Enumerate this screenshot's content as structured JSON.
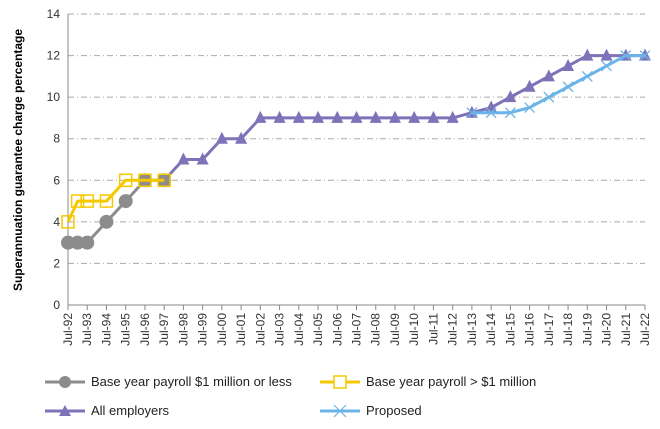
{
  "chart_data": {
    "type": "line",
    "title": "",
    "xlabel": "",
    "ylabel": "Superannuation guarantee charge percentage",
    "ylim": [
      0,
      14
    ],
    "yticks": [
      0,
      2,
      4,
      6,
      8,
      10,
      12,
      14
    ],
    "grid": "horizontal dash-dot",
    "legend": "bottom",
    "xticks": [
      "Jul-92",
      "Jul-93",
      "Jul-94",
      "Jul-95",
      "Jul-96",
      "Jul-97",
      "Jul-98",
      "Jul-99",
      "Jul-00",
      "Jul-01",
      "Jul-02",
      "Jul-03",
      "Jul-04",
      "Jul-05",
      "Jul-06",
      "Jul-07",
      "Jul-08",
      "Jul-09",
      "Jul-10",
      "Jul-11",
      "Jul-12",
      "Jul-13",
      "Jul-14",
      "Jul-15",
      "Jul-16",
      "Jul-17",
      "Jul-18",
      "Jul-19",
      "Jul-20",
      "Jul-21",
      "Jul-22"
    ],
    "series": [
      {
        "name": "Base year payroll  $1 million or less",
        "color": "#8c8c8c",
        "marker": "circle",
        "x": [
          "Jul-92",
          "Jan-93",
          "Jul-93",
          "Jul-94",
          "Jul-95",
          "Jul-96",
          "Jul-97"
        ],
        "values": [
          3,
          3,
          3,
          4,
          5,
          6,
          6
        ]
      },
      {
        "name": "Base year payroll > $1 million",
        "color": "#f5c800",
        "marker": "square",
        "x": [
          "Jul-92",
          "Jan-93",
          "Jul-93",
          "Jul-94",
          "Jul-95",
          "Jul-96",
          "Jul-97"
        ],
        "values": [
          4,
          5,
          5,
          5,
          6,
          6,
          6
        ]
      },
      {
        "name": "All employers",
        "color": "#7f72b8",
        "marker": "triangle",
        "x": [
          "Jul-97",
          "Jul-98",
          "Jul-99",
          "Jul-00",
          "Jul-01",
          "Jul-02",
          "Jul-03",
          "Jul-04",
          "Jul-05",
          "Jul-06",
          "Jul-07",
          "Jul-08",
          "Jul-09",
          "Jul-10",
          "Jul-11",
          "Jul-12",
          "Jul-13",
          "Jul-14",
          "Jul-15",
          "Jul-16",
          "Jul-17",
          "Jul-18",
          "Jul-19",
          "Jul-20",
          "Jul-21",
          "Jul-22"
        ],
        "values": [
          6,
          7,
          7,
          8,
          8,
          9,
          9,
          9,
          9,
          9,
          9,
          9,
          9,
          9,
          9,
          9,
          9.25,
          9.5,
          10,
          10.5,
          11,
          11.5,
          12,
          12,
          12,
          12
        ]
      },
      {
        "name": "Proposed",
        "color": "#6cb4e8",
        "marker": "x",
        "x": [
          "Jul-13",
          "Jul-14",
          "Jul-15",
          "Jul-16",
          "Jul-17",
          "Jul-18",
          "Jul-19",
          "Jul-20",
          "Jul-21",
          "Jul-22"
        ],
        "values": [
          9.25,
          9.25,
          9.25,
          9.5,
          10,
          10.5,
          11,
          11.5,
          12,
          12
        ]
      }
    ]
  }
}
